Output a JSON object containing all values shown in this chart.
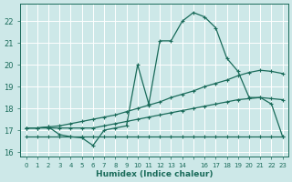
{
  "xlabel": "Humidex (Indice chaleur)",
  "bg_color": "#cde8e8",
  "grid_color": "#ffffff",
  "line_color": "#1a6b5a",
  "xlim": [
    -0.5,
    23.5
  ],
  "ylim": [
    15.8,
    22.8
  ],
  "yticks": [
    16,
    17,
    18,
    19,
    20,
    21,
    22
  ],
  "xticks": [
    0,
    1,
    2,
    3,
    4,
    5,
    6,
    7,
    8,
    9,
    10,
    11,
    12,
    13,
    14,
    15,
    16,
    17,
    18,
    19,
    20,
    21,
    22,
    23
  ],
  "xtick_labels": [
    "0",
    "1",
    "2",
    "3",
    "4",
    "5",
    "6",
    "7",
    "8",
    "9",
    "10",
    "11",
    "12",
    "13",
    "14",
    "",
    "16",
    "17",
    "18",
    "19",
    "20",
    "21",
    "22",
    "23"
  ],
  "line_flat_x": [
    0,
    1,
    2,
    3,
    4,
    5,
    6,
    7,
    8,
    9,
    10,
    11,
    12,
    13,
    14,
    15,
    16,
    17,
    18,
    19,
    20,
    21,
    22,
    23
  ],
  "line_flat_y": [
    16.7,
    16.7,
    16.7,
    16.7,
    16.7,
    16.7,
    16.7,
    16.7,
    16.7,
    16.7,
    16.7,
    16.7,
    16.7,
    16.7,
    16.7,
    16.7,
    16.7,
    16.7,
    16.7,
    16.7,
    16.7,
    16.7,
    16.7,
    16.7
  ],
  "line_low_x": [
    0,
    1,
    2,
    3,
    4,
    5,
    6,
    7,
    8,
    9,
    10,
    11,
    12,
    13,
    14,
    15,
    16,
    17,
    18,
    19,
    20,
    21,
    22,
    23
  ],
  "line_low_y": [
    17.1,
    17.1,
    17.1,
    17.1,
    17.1,
    17.1,
    17.1,
    17.2,
    17.3,
    17.4,
    17.5,
    17.6,
    17.7,
    17.8,
    17.9,
    18.0,
    18.1,
    18.2,
    18.3,
    18.4,
    18.45,
    18.5,
    18.45,
    18.4
  ],
  "line_mid_x": [
    0,
    1,
    2,
    3,
    4,
    5,
    6,
    7,
    8,
    9,
    10,
    11,
    12,
    13,
    14,
    15,
    16,
    17,
    18,
    19,
    20,
    21,
    22,
    23
  ],
  "line_mid_y": [
    17.1,
    17.1,
    17.15,
    17.2,
    17.3,
    17.4,
    17.5,
    17.6,
    17.7,
    17.85,
    18.0,
    18.15,
    18.3,
    18.5,
    18.65,
    18.8,
    19.0,
    19.15,
    19.3,
    19.5,
    19.65,
    19.75,
    19.7,
    19.6
  ],
  "line_main_x": [
    0,
    1,
    2,
    3,
    4,
    5,
    6,
    7,
    8,
    9,
    10,
    11,
    12,
    13,
    14,
    15,
    16,
    17,
    18,
    19,
    20,
    21,
    22,
    23
  ],
  "line_main_y": [
    17.1,
    17.1,
    17.15,
    16.8,
    16.7,
    16.65,
    16.3,
    17.0,
    17.1,
    17.2,
    20.0,
    18.2,
    21.1,
    21.1,
    22.0,
    22.4,
    22.2,
    21.7,
    20.3,
    19.7,
    18.5,
    18.5,
    18.2,
    16.7
  ]
}
